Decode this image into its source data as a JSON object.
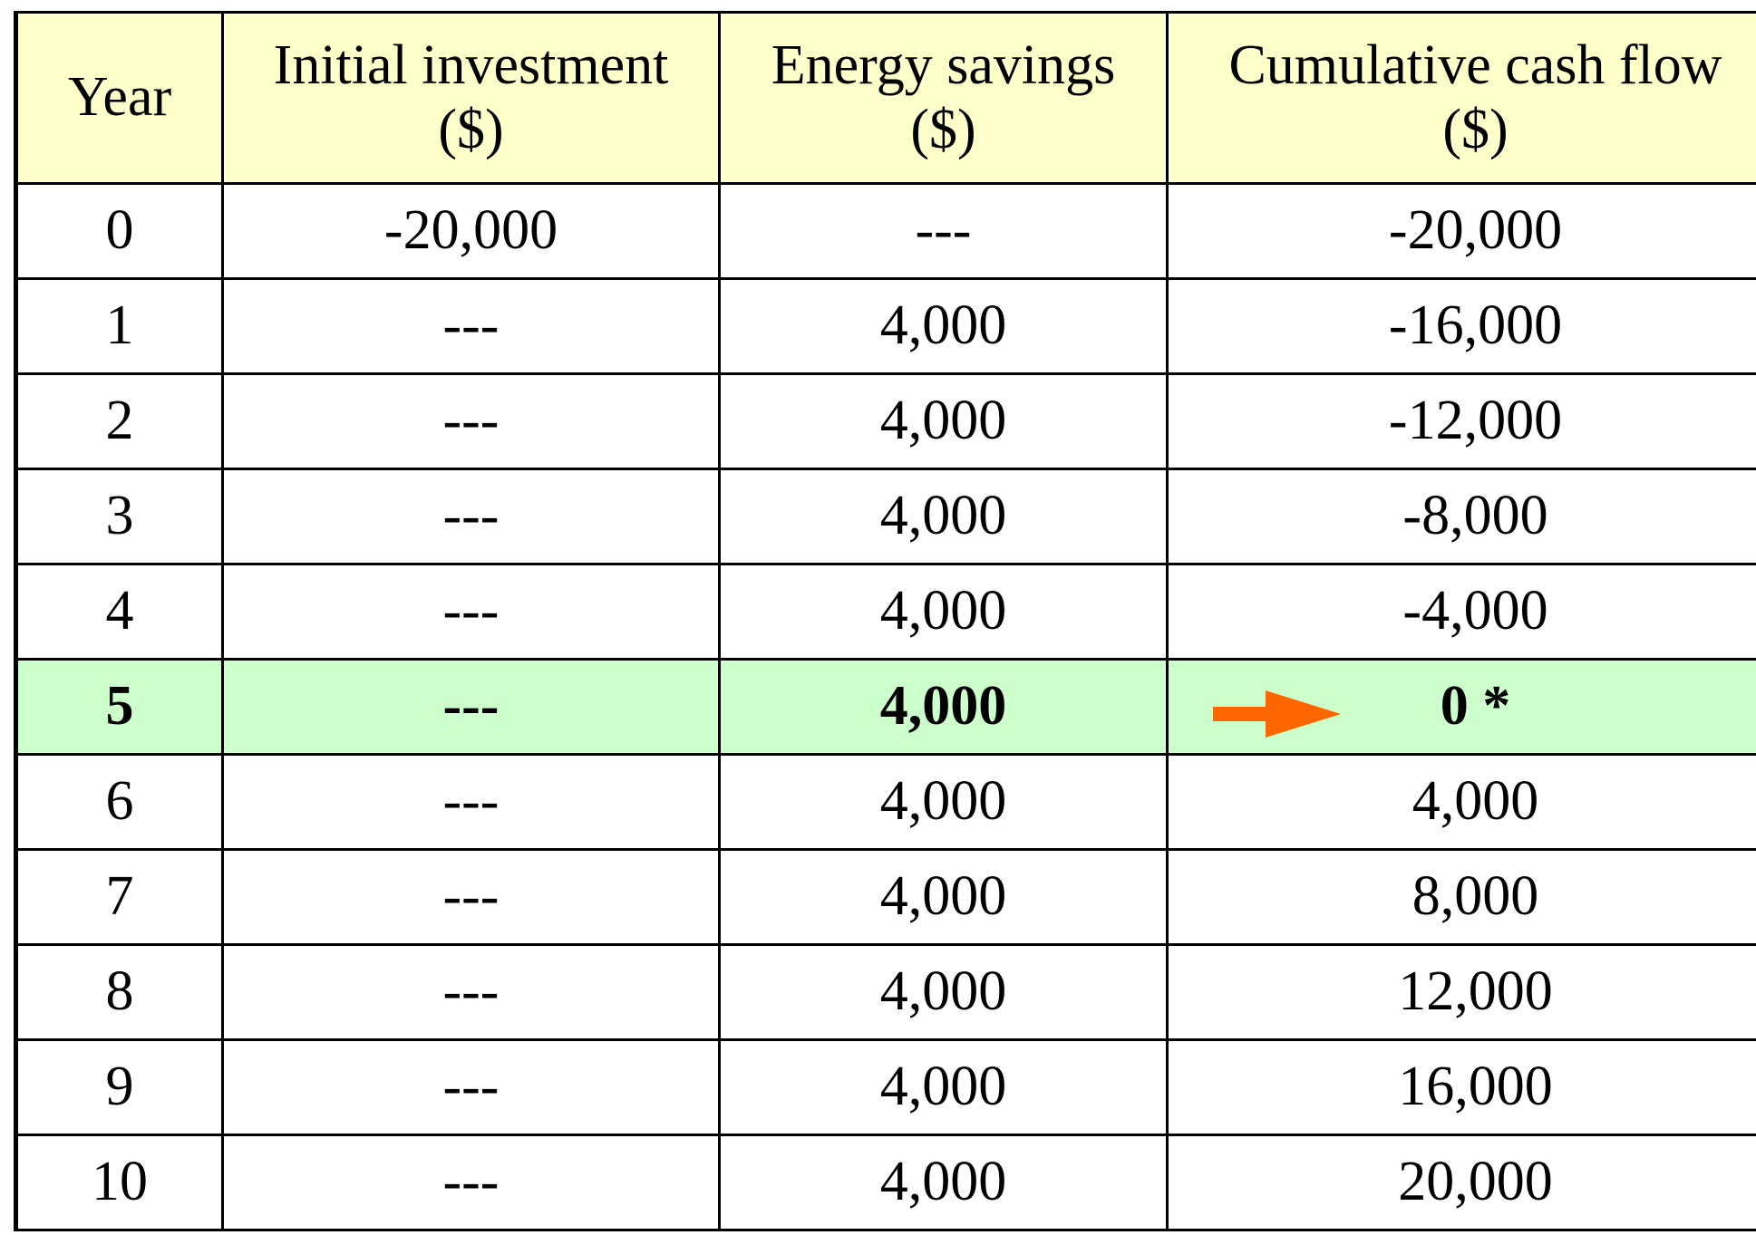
{
  "table": {
    "header": [
      "Year",
      "Initial investment\n($)",
      "Energy savings\n($)",
      "Cumulative cash flow\n($)"
    ],
    "rows": [
      [
        "0",
        "-20,000",
        "---",
        "-20,000"
      ],
      [
        "1",
        "---",
        "4,000",
        "-16,000"
      ],
      [
        "2",
        "---",
        "4,000",
        "-12,000"
      ],
      [
        "3",
        "---",
        "4,000",
        "-8,000"
      ],
      [
        "4",
        "---",
        "4,000",
        "-4,000"
      ],
      [
        "5",
        "---",
        "4,000",
        "0 *"
      ],
      [
        "6",
        "---",
        "4,000",
        "4,000"
      ],
      [
        "7",
        "---",
        "4,000",
        "8,000"
      ],
      [
        "8",
        "---",
        "4,000",
        "12,000"
      ],
      [
        "9",
        "---",
        "4,000",
        "16,000"
      ],
      [
        "10",
        "---",
        "4,000",
        "20,000"
      ]
    ]
  }
}
